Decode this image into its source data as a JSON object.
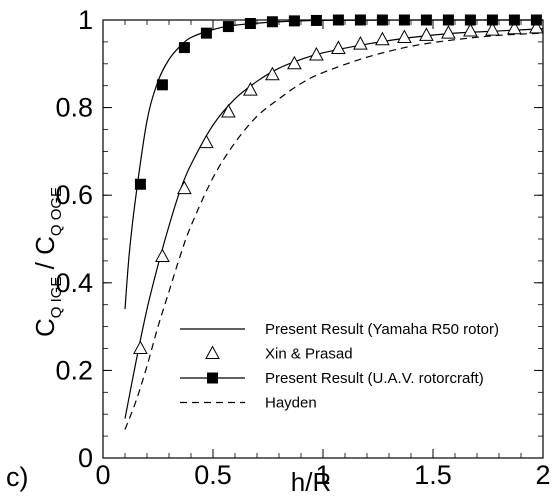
{
  "panel_label": "c)",
  "chart_data": {
    "type": "line",
    "xlabel": "h/R",
    "ylabel": {
      "c1": "C",
      "s1": "Q IGE",
      "sep": " / ",
      "c2": "C",
      "s2": "Q OGE"
    },
    "xlim": [
      0,
      2
    ],
    "ylim": [
      0,
      1
    ],
    "xticks": [
      "0",
      "0.5",
      "1",
      "1.5",
      "2"
    ],
    "yticks": [
      "0",
      "0.2",
      "0.4",
      "0.6",
      "0.8",
      "1"
    ],
    "legend_position": "bottom-right",
    "series": [
      {
        "name": "Present Result (Yamaha R50 rotor)",
        "style": "solid",
        "marker": "none",
        "color": "#000000",
        "x": [
          0.1,
          0.15,
          0.2,
          0.25,
          0.3,
          0.35,
          0.4,
          0.5,
          0.6,
          0.7,
          0.8,
          0.9,
          1.0,
          1.2,
          1.4,
          1.6,
          1.8,
          2.0
        ],
        "y": [
          0.09,
          0.22,
          0.34,
          0.44,
          0.53,
          0.61,
          0.67,
          0.76,
          0.82,
          0.86,
          0.89,
          0.91,
          0.925,
          0.945,
          0.96,
          0.97,
          0.975,
          0.98
        ]
      },
      {
        "name": "Xin & Prasad",
        "style": "none",
        "marker": "triangle",
        "color": "#000000",
        "x": [
          0.17,
          0.27,
          0.37,
          0.47,
          0.57,
          0.67,
          0.77,
          0.87,
          0.97,
          1.07,
          1.17,
          1.27,
          1.37,
          1.47,
          1.57,
          1.67,
          1.77,
          1.87,
          1.97
        ],
        "y": [
          0.25,
          0.46,
          0.615,
          0.72,
          0.79,
          0.84,
          0.875,
          0.9,
          0.92,
          0.935,
          0.945,
          0.955,
          0.96,
          0.965,
          0.97,
          0.975,
          0.977,
          0.98,
          0.982
        ]
      },
      {
        "name": "Present Result (U.A.V. rotorcraft)",
        "style": "solid",
        "marker": "square",
        "color": "#000000",
        "x": [
          0.1,
          0.12,
          0.15,
          0.2,
          0.25,
          0.3,
          0.35,
          0.4,
          0.5,
          0.6,
          0.8,
          1.0,
          1.5,
          2.0
        ],
        "y": [
          0.34,
          0.47,
          0.6,
          0.77,
          0.86,
          0.91,
          0.94,
          0.96,
          0.978,
          0.988,
          0.996,
          0.999,
          1.0,
          1.0
        ],
        "marker_x": [
          0.17,
          0.27,
          0.37,
          0.47,
          0.57,
          0.67,
          0.77,
          0.87,
          0.97,
          1.07,
          1.17,
          1.27,
          1.37,
          1.47,
          1.57,
          1.67,
          1.77,
          1.87,
          1.97
        ],
        "marker_y": [
          0.625,
          0.852,
          0.937,
          0.97,
          0.985,
          0.992,
          0.996,
          0.998,
          0.999,
          1.0,
          1.0,
          1.0,
          1.0,
          1.0,
          1.0,
          1.0,
          1.0,
          1.0,
          1.0
        ]
      },
      {
        "name": "Hayden",
        "style": "dashed",
        "marker": "none",
        "color": "#000000",
        "x": [
          0.1,
          0.15,
          0.2,
          0.25,
          0.3,
          0.35,
          0.4,
          0.5,
          0.6,
          0.7,
          0.8,
          0.9,
          1.0,
          1.2,
          1.4,
          1.6,
          1.8,
          2.0
        ],
        "y": [
          0.065,
          0.13,
          0.21,
          0.3,
          0.38,
          0.46,
          0.53,
          0.64,
          0.72,
          0.78,
          0.82,
          0.855,
          0.88,
          0.915,
          0.94,
          0.955,
          0.965,
          0.97
        ]
      }
    ]
  }
}
